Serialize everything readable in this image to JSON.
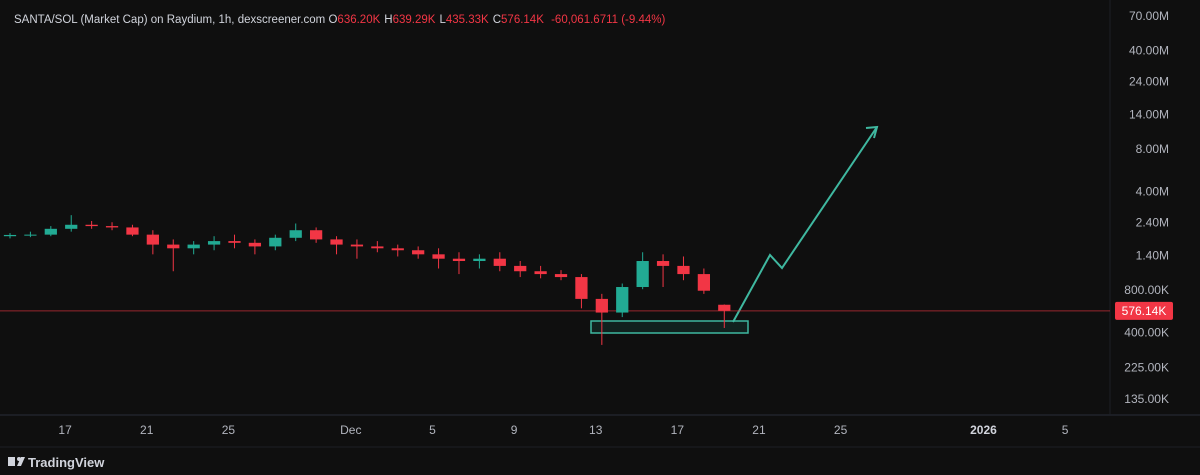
{
  "chart_data": {
    "type": "candlestick",
    "title": "SANTA/SOL (Market Cap) on Raydium, 1h, dexscreener.com",
    "ohlc_legend": [
      {
        "label": "O",
        "value": "636.20K"
      },
      {
        "label": "H",
        "value": "639.29K"
      },
      {
        "label": "L",
        "value": "435.33K"
      },
      {
        "label": "C",
        "value": "576.14K"
      }
    ],
    "change": "-60,061.6711 (-9.44%)",
    "log_scale": true,
    "grid": false,
    "up_color": "#22ab94",
    "down_color": "#f23645",
    "xlim": [
      -3.19,
      51.2
    ],
    "xticks": [
      {
        "value": 0,
        "label": "17"
      },
      {
        "value": 4,
        "label": "21"
      },
      {
        "value": 8,
        "label": "25"
      },
      {
        "value": 14,
        "label": "Dec"
      },
      {
        "value": 18,
        "label": "5"
      },
      {
        "value": 22,
        "label": "9"
      },
      {
        "value": 26,
        "label": "13"
      },
      {
        "value": 30,
        "label": "17"
      },
      {
        "value": 34,
        "label": "21"
      },
      {
        "value": 38,
        "label": "25"
      },
      {
        "value": 45,
        "label": "2026"
      },
      {
        "value": 49,
        "label": "5"
      }
    ],
    "ylim": [
      105000,
      92500000
    ],
    "yticks": [
      {
        "value": 70000000,
        "label": "70.00M"
      },
      {
        "value": 40000000,
        "label": "40.00M"
      },
      {
        "value": 24000000,
        "label": "24.00M"
      },
      {
        "value": 14000000,
        "label": "14.00M"
      },
      {
        "value": 8000000,
        "label": "8.00M"
      },
      {
        "value": 4000000,
        "label": "4.00M"
      },
      {
        "value": 2400000,
        "label": "2.40M"
      },
      {
        "value": 1400000,
        "label": "1.40M"
      },
      {
        "value": 800000,
        "label": "800.00K"
      },
      {
        "value": 400000,
        "label": "400.00K"
      },
      {
        "value": 225000,
        "label": "225.00K"
      },
      {
        "value": 135000,
        "label": "135.00K"
      }
    ],
    "last_price": {
      "value": 576140,
      "label": "576.14K"
    },
    "x": [
      -2.7,
      -1.7,
      -0.7,
      0.3,
      1.3,
      2.3,
      3.3,
      4.3,
      5.3,
      6.3,
      7.3,
      8.3,
      9.3,
      10.3,
      11.3,
      12.3,
      13.3,
      14.3,
      15.3,
      16.3,
      17.3,
      18.3,
      19.3,
      20.3,
      21.3,
      22.3,
      23.3,
      24.3,
      25.3,
      26.3,
      27.3,
      28.3,
      29.3,
      30.3,
      31.3,
      32.3
    ],
    "open": [
      1950000,
      1990000,
      2000000,
      2200000,
      2350000,
      2300000,
      2250000,
      2000000,
      1700000,
      1600000,
      1700000,
      1800000,
      1750000,
      1650000,
      1900000,
      2150000,
      1850000,
      1700000,
      1650000,
      1600000,
      1550000,
      1450000,
      1350000,
      1300000,
      1350000,
      1200000,
      1100000,
      1050000,
      1000000,
      700000,
      560000,
      850000,
      1300000,
      1200000,
      1050000,
      636200
    ],
    "high": [
      2050000,
      2100000,
      2300000,
      2750000,
      2500000,
      2450000,
      2350000,
      2150000,
      1850000,
      1800000,
      1950000,
      2000000,
      1850000,
      2000000,
      2400000,
      2250000,
      1950000,
      1850000,
      1800000,
      1700000,
      1650000,
      1600000,
      1500000,
      1450000,
      1500000,
      1300000,
      1200000,
      1120000,
      1050000,
      760000,
      900000,
      1500000,
      1450000,
      1400000,
      1150000,
      639290
    ],
    "low": [
      1880000,
      1920000,
      1950000,
      2100000,
      2200000,
      2150000,
      1950000,
      1450000,
      1100000,
      1450000,
      1550000,
      1600000,
      1450000,
      1550000,
      1800000,
      1750000,
      1450000,
      1350000,
      1500000,
      1400000,
      1350000,
      1150000,
      1050000,
      1150000,
      1100000,
      1000000,
      980000,
      950000,
      600000,
      330000,
      520000,
      820000,
      850000,
      950000,
      760000,
      435330
    ],
    "close": [
      1990000,
      2000000,
      2200000,
      2350000,
      2300000,
      2250000,
      2000000,
      1700000,
      1600000,
      1700000,
      1800000,
      1750000,
      1650000,
      1900000,
      2150000,
      1850000,
      1700000,
      1650000,
      1600000,
      1550000,
      1450000,
      1350000,
      1300000,
      1350000,
      1200000,
      1100000,
      1050000,
      1000000,
      700000,
      560000,
      850000,
      1300000,
      1200000,
      1050000,
      800000,
      576140
    ]
  },
  "branding": "TradingView"
}
